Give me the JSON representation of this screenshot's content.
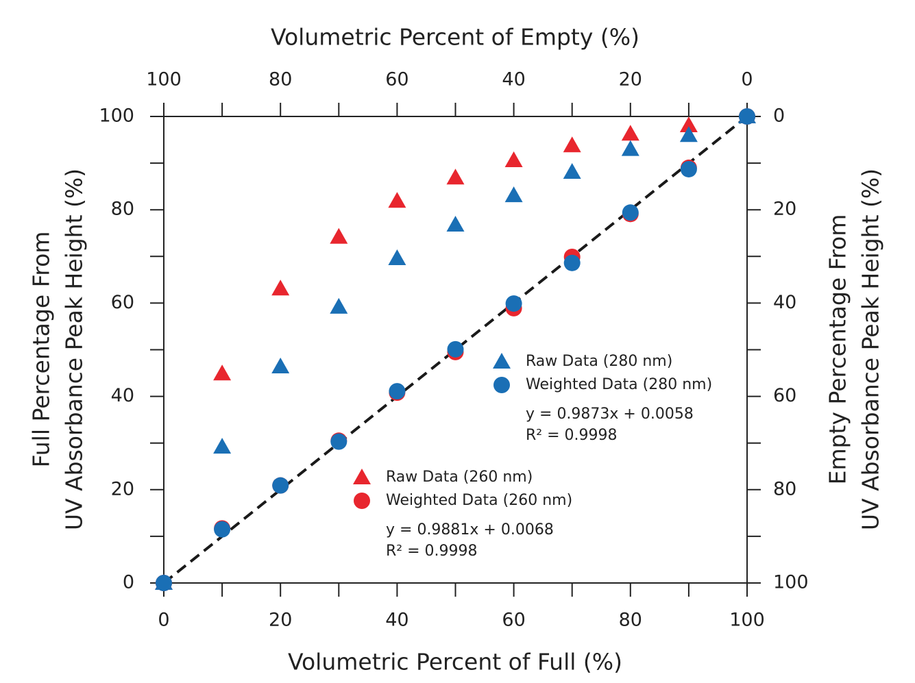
{
  "chart_data": {
    "type": "scatter",
    "xlabel": "Volumetric Percent of Full (%)",
    "x2label": "Volumetric Percent of Empty (%)",
    "ylabel": [
      "Full Percentage From",
      "UV Absorbance Peak Height (%)"
    ],
    "y2label": [
      "Empty Percentage From",
      "UV Absorbance Peak Height (%)"
    ],
    "xlim": [
      0,
      100
    ],
    "xticks": [
      0,
      20,
      40,
      60,
      80,
      100
    ],
    "xminorticks": [
      10,
      30,
      50,
      70,
      90
    ],
    "x2lim": [
      100,
      0
    ],
    "x2ticks": [
      100,
      80,
      60,
      40,
      20,
      0
    ],
    "x2minorticks": [
      90,
      70,
      50,
      30,
      10
    ],
    "ylim": [
      0,
      100
    ],
    "yticks": [
      0,
      20,
      40,
      60,
      80,
      100
    ],
    "yminorticks": [
      10,
      30,
      50,
      70,
      90
    ],
    "y2lim": [
      100,
      0
    ],
    "y2ticks": [
      0,
      20,
      40,
      60,
      80,
      100
    ],
    "y2minorticks": [
      10,
      30,
      50,
      70,
      90
    ],
    "reference_line": {
      "x": [
        0,
        100
      ],
      "values": [
        0,
        100
      ],
      "color": "#1a1a1a"
    },
    "series": [
      {
        "name": "Raw Data (260 nm)",
        "color": "#e8262e",
        "marker": "triangle",
        "x": [
          0,
          10,
          20,
          30,
          40,
          50,
          60,
          70,
          80,
          90
        ],
        "values": [
          0,
          44.9,
          63.1,
          74.2,
          81.9,
          86.9,
          90.6,
          93.8,
          96.3,
          98.1
        ]
      },
      {
        "name": "Raw Data (280 nm)",
        "color": "#1a6fb5",
        "marker": "triangle",
        "x": [
          0,
          10,
          20,
          30,
          40,
          50,
          60,
          70,
          80,
          90,
          100
        ],
        "values": [
          0,
          29.2,
          46.4,
          59.2,
          69.6,
          76.8,
          83.1,
          88.1,
          93.0,
          96.0,
          100
        ]
      },
      {
        "name": "Weighted Data (260 nm)",
        "color": "#e8262e",
        "marker": "circle",
        "x": [
          0,
          10,
          20,
          30,
          40,
          50,
          60,
          70,
          80,
          90,
          100
        ],
        "values": [
          0,
          11.7,
          20.9,
          30.5,
          40.8,
          49.5,
          58.9,
          69.9,
          79.1,
          89.0,
          100
        ]
      },
      {
        "name": "Weighted Data  (280 nm)",
        "color": "#1a6fb5",
        "marker": "circle",
        "x": [
          0,
          10,
          20,
          30,
          40,
          50,
          60,
          70,
          80,
          90,
          100
        ],
        "values": [
          0,
          11.5,
          20.9,
          30.3,
          41.1,
          50.1,
          59.9,
          68.6,
          79.4,
          88.7,
          100
        ]
      }
    ],
    "annotations": [
      "y = 0.9873x + 0.0058",
      "R² = 0.9998",
      "y = 0.9881x + 0.0068",
      "R² = 0.9998"
    ]
  }
}
